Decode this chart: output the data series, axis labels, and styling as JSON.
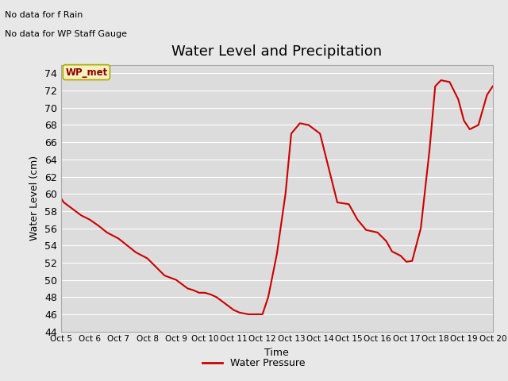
{
  "title": "Water Level and Precipitation",
  "xlabel": "Time",
  "ylabel": "Water Level (cm)",
  "legend_label": "Water Pressure",
  "annotation_line1": "No data for f Rain",
  "annotation_line2": "No data for WP Staff Gauge",
  "wp_met_label": "WP_met",
  "ylim": [
    44,
    75
  ],
  "line_color": "#cc0000",
  "line_width": 1.5,
  "bg_color": "#e8e8e8",
  "plot_bg_color": "#dcdcdc",
  "x_data": [
    5,
    5.1,
    5.3,
    5.5,
    5.7,
    6.0,
    6.3,
    6.6,
    7.0,
    7.3,
    7.6,
    8.0,
    8.3,
    8.6,
    9.0,
    9.2,
    9.4,
    9.6,
    9.8,
    10.0,
    10.2,
    10.4,
    10.6,
    10.8,
    11.0,
    11.2,
    11.5,
    11.8,
    12.0,
    12.2,
    12.5,
    12.8,
    13.0,
    13.3,
    13.6,
    14.0,
    14.3,
    14.6,
    15.0,
    15.3,
    15.6,
    16.0,
    16.3,
    16.5,
    16.8,
    17.0,
    17.2,
    17.5,
    17.8,
    18.0,
    18.2,
    18.5,
    18.8,
    19.0,
    19.2,
    19.5,
    19.8,
    20.0
  ],
  "y_data": [
    59.5,
    59.0,
    58.5,
    58.0,
    57.5,
    57.0,
    56.3,
    55.5,
    54.8,
    54.0,
    53.2,
    52.5,
    51.5,
    50.5,
    50.0,
    49.5,
    49.0,
    48.8,
    48.5,
    48.5,
    48.3,
    48.0,
    47.5,
    47.0,
    46.5,
    46.2,
    46.0,
    46.0,
    46.0,
    48.0,
    53.0,
    60.0,
    67.0,
    68.2,
    68.0,
    67.0,
    63.0,
    59.0,
    58.8,
    57.0,
    55.8,
    55.5,
    54.5,
    53.3,
    52.8,
    52.1,
    52.2,
    56.0,
    65.0,
    72.5,
    73.2,
    73.0,
    71.0,
    68.5,
    67.5,
    68.0,
    71.5,
    72.5
  ],
  "xtick_labels": [
    "Oct 5",
    "Oct 6",
    "Oct 7",
    "Oct 8",
    "Oct 9",
    "Oct 10",
    "Oct 11",
    "Oct 12",
    "Oct 13",
    "Oct 14",
    "Oct 15",
    "Oct 16",
    "Oct 17",
    "Oct 18",
    "Oct 19",
    "Oct 20"
  ],
  "title_fontsize": 13,
  "axis_fontsize": 9,
  "label_fontsize": 9
}
